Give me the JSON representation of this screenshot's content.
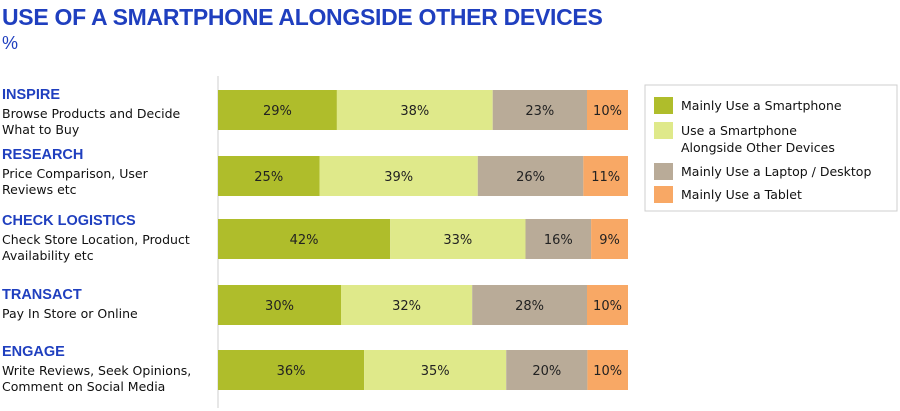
{
  "chart_data": {
    "type": "bar",
    "orientation": "horizontal",
    "stacked": true,
    "title": "USE OF A SMARTPHONE ALONGSIDE OTHER DEVICES",
    "unit": "%",
    "categories": [
      {
        "heading": "INSPIRE",
        "description": [
          "Browse Products and Decide",
          "What  to Buy"
        ]
      },
      {
        "heading": "RESEARCH",
        "description": [
          "Price Comparison, User",
          "Reviews etc"
        ]
      },
      {
        "heading": "CHECK LOGISTICS",
        "description": [
          "Check Store Location, Product",
          "Availability etc"
        ]
      },
      {
        "heading": "TRANSACT",
        "description": [
          "Pay In Store or Online"
        ]
      },
      {
        "heading": "ENGAGE",
        "description": [
          "Write Reviews, Seek Opinions,",
          "Comment on Social Media"
        ]
      }
    ],
    "series": [
      {
        "name": "Mainly Use a Smartphone",
        "color": "#afbd2b",
        "values": [
          29,
          25,
          42,
          30,
          36
        ]
      },
      {
        "name": "Use a Smartphone Alongside Other Devices",
        "name_lines": [
          "Use a Smartphone",
          "Alongside Other Devices"
        ],
        "color": "#dfe98a",
        "values": [
          38,
          39,
          33,
          32,
          35
        ]
      },
      {
        "name": "Mainly Use a Laptop / Desktop",
        "color": "#b9ab98",
        "values": [
          23,
          26,
          16,
          28,
          20
        ]
      },
      {
        "name": "Mainly Use a Tablet",
        "color": "#f8a865",
        "values": [
          10,
          11,
          9,
          10,
          10
        ]
      }
    ],
    "value_suffix": "%",
    "legend_position": "right",
    "grid": false
  }
}
